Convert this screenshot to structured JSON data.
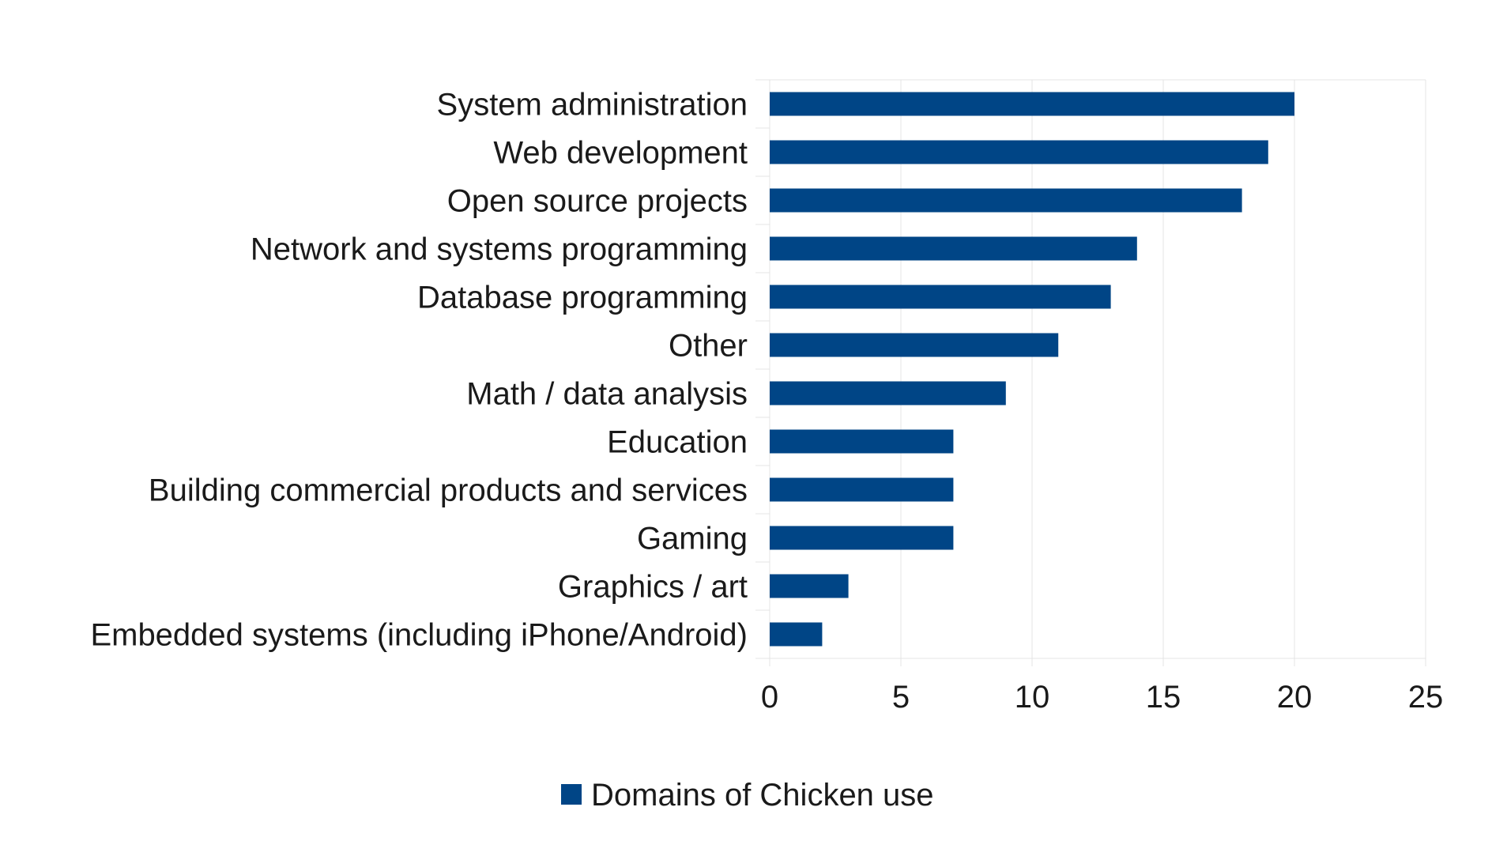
{
  "chart_data": {
    "type": "bar",
    "orientation": "horizontal",
    "categories": [
      "System administration",
      "Web development",
      "Open source projects",
      "Network and systems programming",
      "Database programming",
      "Other",
      "Math / data analysis",
      "Education",
      "Building commercial products and services",
      "Gaming",
      "Graphics / art",
      "Embedded systems (including iPhone/Android)"
    ],
    "series": [
      {
        "name": "Domains of Chicken use",
        "color": "#004586",
        "values": [
          20,
          19,
          18,
          14,
          13,
          11,
          9,
          7,
          7,
          7,
          3,
          2
        ]
      }
    ],
    "xlim": [
      0,
      25
    ],
    "xticks": [
      0,
      5,
      10,
      15,
      20,
      25
    ],
    "grid": true,
    "legend_position": "bottom-center"
  }
}
